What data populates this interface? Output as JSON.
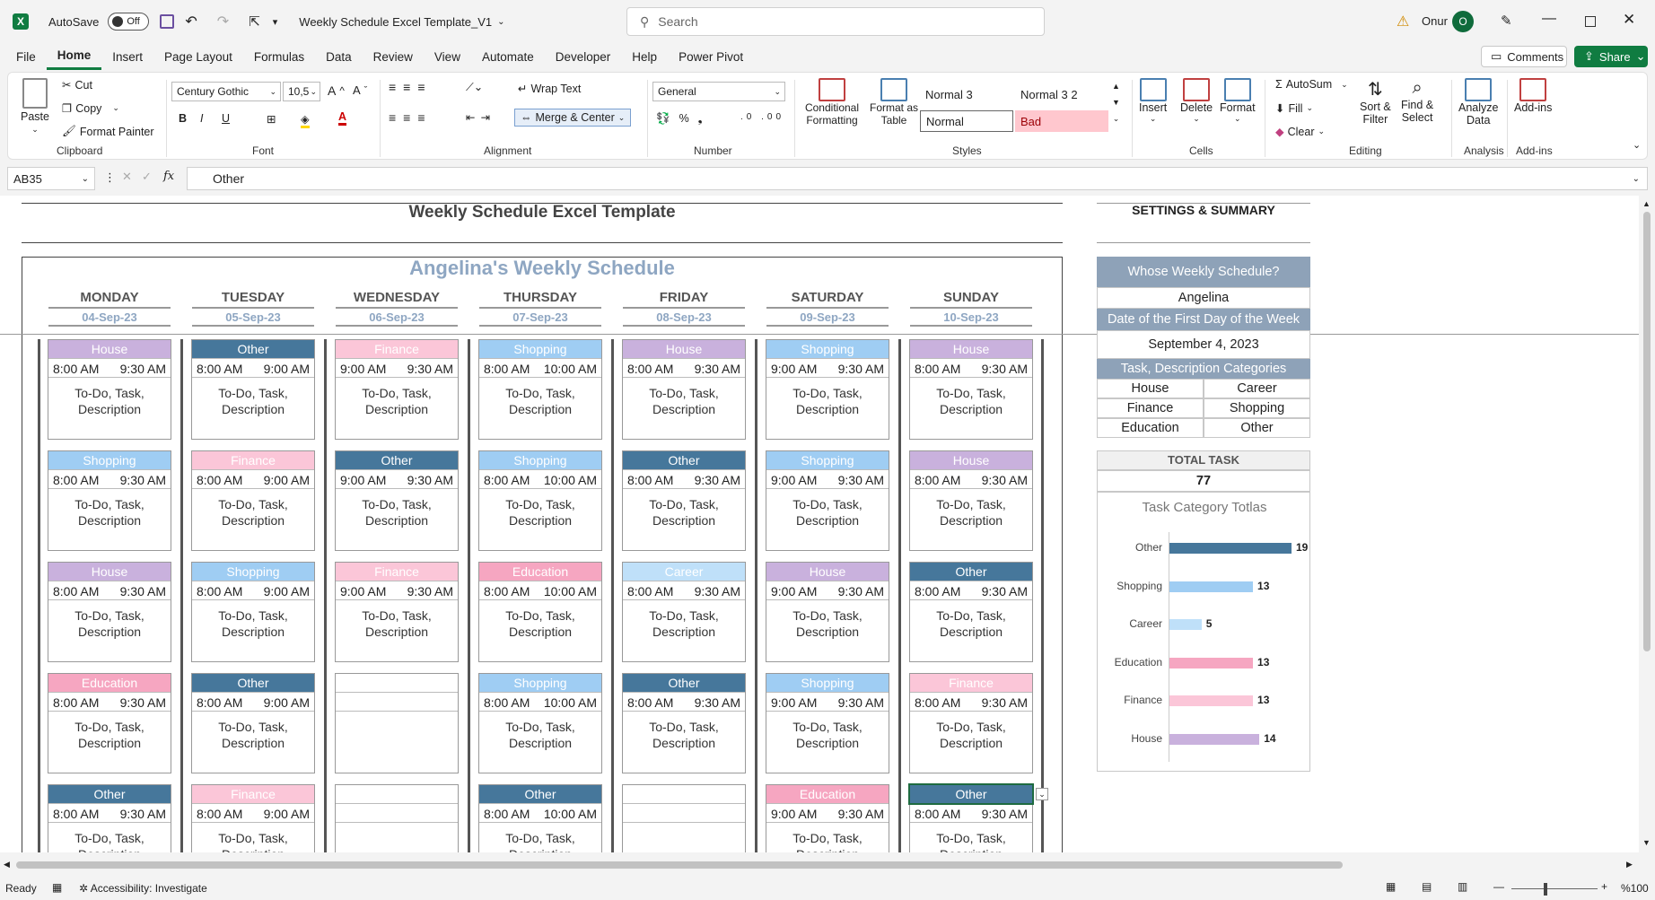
{
  "titlebar": {
    "autosave_label": "AutoSave",
    "autosave_state": "Off",
    "filename": "Weekly Schedule Excel Template_V1",
    "search_placeholder": "Search",
    "user_name": "Onur",
    "user_initial": "O"
  },
  "menu": {
    "items": [
      "File",
      "Home",
      "Insert",
      "Page Layout",
      "Formulas",
      "Data",
      "Review",
      "View",
      "Automate",
      "Developer",
      "Help",
      "Power Pivot"
    ],
    "active": "Home",
    "comments_label": "Comments",
    "share_label": "Share"
  },
  "ribbon": {
    "clipboard": {
      "paste": "Paste",
      "cut": "Cut",
      "copy": "Copy",
      "format_painter": "Format Painter",
      "label": "Clipboard"
    },
    "font": {
      "name": "Century Gothic",
      "size": "10,5",
      "label": "Font"
    },
    "alignment": {
      "wrap_text": "Wrap Text",
      "merge_center": "Merge & Center",
      "label": "Alignment"
    },
    "number": {
      "format": "General",
      "label": "Number"
    },
    "styles": {
      "conditional": "Conditional",
      "conditional2": "Formatting",
      "format_as": "Format as",
      "format_as2": "Table",
      "normal3": "Normal 3",
      "normal32": "Normal 3 2",
      "normal": "Normal",
      "bad": "Bad",
      "label": "Styles"
    },
    "cells": {
      "insert": "Insert",
      "delete": "Delete",
      "format": "Format",
      "label": "Cells"
    },
    "editing": {
      "autosum": "AutoSum",
      "fill": "Fill",
      "clear": "Clear",
      "sort": "Sort &",
      "sort2": "Filter",
      "find": "Find &",
      "find2": "Select",
      "label": "Editing"
    },
    "analysis": {
      "analyze": "Analyze",
      "analyze2": "Data",
      "label": "Analysis"
    },
    "addins": {
      "addins": "Add-ins",
      "label": "Add-ins"
    }
  },
  "formula_bar": {
    "cell_ref": "AB35",
    "value": "Other"
  },
  "sheet": {
    "doc_title": "Weekly Schedule Excel Template",
    "schedule_title": "Angelina's Weekly Schedule",
    "days": [
      {
        "name": "MONDAY",
        "date": "04-Sep-23"
      },
      {
        "name": "TUESDAY",
        "date": "05-Sep-23"
      },
      {
        "name": "WEDNESDAY",
        "date": "06-Sep-23"
      },
      {
        "name": "THURSDAY",
        "date": "07-Sep-23"
      },
      {
        "name": "FRIDAY",
        "date": "08-Sep-23"
      },
      {
        "name": "SATURDAY",
        "date": "09-Sep-23"
      },
      {
        "name": "SUNDAY",
        "date": "10-Sep-23"
      }
    ],
    "task_desc_line1": "To-Do, Task,",
    "task_desc_line2": "Description",
    "tasks": [
      [
        {
          "cat": "House",
          "start": "8:00 AM",
          "end": "9:30 AM"
        },
        {
          "cat": "Shopping",
          "start": "8:00 AM",
          "end": "9:30 AM"
        },
        {
          "cat": "House",
          "start": "8:00 AM",
          "end": "9:30 AM"
        },
        {
          "cat": "Education",
          "start": "8:00 AM",
          "end": "9:30 AM"
        },
        {
          "cat": "Other",
          "start": "8:00 AM",
          "end": "9:30 AM"
        }
      ],
      [
        {
          "cat": "Other",
          "start": "8:00 AM",
          "end": "9:00 AM"
        },
        {
          "cat": "Finance",
          "start": "8:00 AM",
          "end": "9:00 AM"
        },
        {
          "cat": "Shopping",
          "start": "8:00 AM",
          "end": "9:00 AM"
        },
        {
          "cat": "Other",
          "start": "8:00 AM",
          "end": "9:00 AM"
        },
        {
          "cat": "Finance",
          "start": "8:00 AM",
          "end": "9:00 AM"
        }
      ],
      [
        {
          "cat": "Finance",
          "start": "9:00 AM",
          "end": "9:30 AM"
        },
        {
          "cat": "Other",
          "start": "9:00 AM",
          "end": "9:30 AM"
        },
        {
          "cat": "Finance",
          "start": "9:00 AM",
          "end": "9:30 AM"
        },
        {
          "cat": "",
          "start": "",
          "end": ""
        },
        {
          "cat": "",
          "start": "",
          "end": ""
        }
      ],
      [
        {
          "cat": "Shopping",
          "start": "8:00 AM",
          "end": "10:00 AM"
        },
        {
          "cat": "Shopping",
          "start": "8:00 AM",
          "end": "10:00 AM"
        },
        {
          "cat": "Education",
          "start": "8:00 AM",
          "end": "10:00 AM"
        },
        {
          "cat": "Shopping",
          "start": "8:00 AM",
          "end": "10:00 AM"
        },
        {
          "cat": "Other",
          "start": "8:00 AM",
          "end": "10:00 AM"
        }
      ],
      [
        {
          "cat": "House",
          "start": "8:00 AM",
          "end": "9:30 AM"
        },
        {
          "cat": "Other",
          "start": "8:00 AM",
          "end": "9:30 AM"
        },
        {
          "cat": "Career",
          "start": "8:00 AM",
          "end": "9:30 AM"
        },
        {
          "cat": "Other",
          "start": "8:00 AM",
          "end": "9:30 AM"
        },
        {
          "cat": "",
          "start": "",
          "end": ""
        }
      ],
      [
        {
          "cat": "Shopping",
          "start": "9:00 AM",
          "end": "9:30 AM"
        },
        {
          "cat": "Shopping",
          "start": "9:00 AM",
          "end": "9:30 AM"
        },
        {
          "cat": "House",
          "start": "9:00 AM",
          "end": "9:30 AM"
        },
        {
          "cat": "Shopping",
          "start": "9:00 AM",
          "end": "9:30 AM"
        },
        {
          "cat": "Education",
          "start": "9:00 AM",
          "end": "9:30 AM"
        }
      ],
      [
        {
          "cat": "House",
          "start": "8:00 AM",
          "end": "9:30 AM"
        },
        {
          "cat": "House",
          "start": "8:00 AM",
          "end": "9:30 AM"
        },
        {
          "cat": "Other",
          "start": "8:00 AM",
          "end": "9:30 AM"
        },
        {
          "cat": "Finance",
          "start": "8:00 AM",
          "end": "9:30 AM"
        },
        {
          "cat": "Other",
          "start": "8:00 AM",
          "end": "9:30 AM"
        }
      ]
    ],
    "category_colors": {
      "House": {
        "bg": "#c9b1dd",
        "fg": "#ffffff"
      },
      "Other": {
        "bg": "#46779b",
        "fg": "#ffffff"
      },
      "Finance": {
        "bg": "#fbc6d8",
        "fg": "#ffffff"
      },
      "Shopping": {
        "bg": "#9fcdf3",
        "fg": "#ffffff"
      },
      "Education": {
        "bg": "#f6a6c1",
        "fg": "#ffffff"
      },
      "Career": {
        "bg": "#bfe0f9",
        "fg": "#ffffff"
      }
    }
  },
  "settings": {
    "title": "SETTINGS & SUMMARY",
    "whose_label": "Whose Weekly Schedule?",
    "whose_value": "Angelina",
    "first_day_label": "Date of the First Day of the Week",
    "first_day_value": "September 4, 2023",
    "categories_label": "Task, Description Categories",
    "categories": [
      "House",
      "Career",
      "Finance",
      "Shopping",
      "Education",
      "Other"
    ],
    "total_label": "TOTAL TASK",
    "total_value": "77"
  },
  "chart_data": {
    "type": "bar",
    "orientation": "horizontal",
    "title": "Task Category Totlas",
    "categories": [
      "Other",
      "Shopping",
      "Career",
      "Education",
      "Finance",
      "House"
    ],
    "values": [
      19,
      13,
      5,
      13,
      13,
      14
    ],
    "colors": [
      "#46779b",
      "#9fcdf3",
      "#bfe0f9",
      "#f6a6c1",
      "#fbc6d8",
      "#c9b1dd"
    ],
    "xlim": [
      0,
      19
    ]
  },
  "status": {
    "ready": "Ready",
    "accessibility": "Accessibility: Investigate",
    "zoom": "%100"
  }
}
